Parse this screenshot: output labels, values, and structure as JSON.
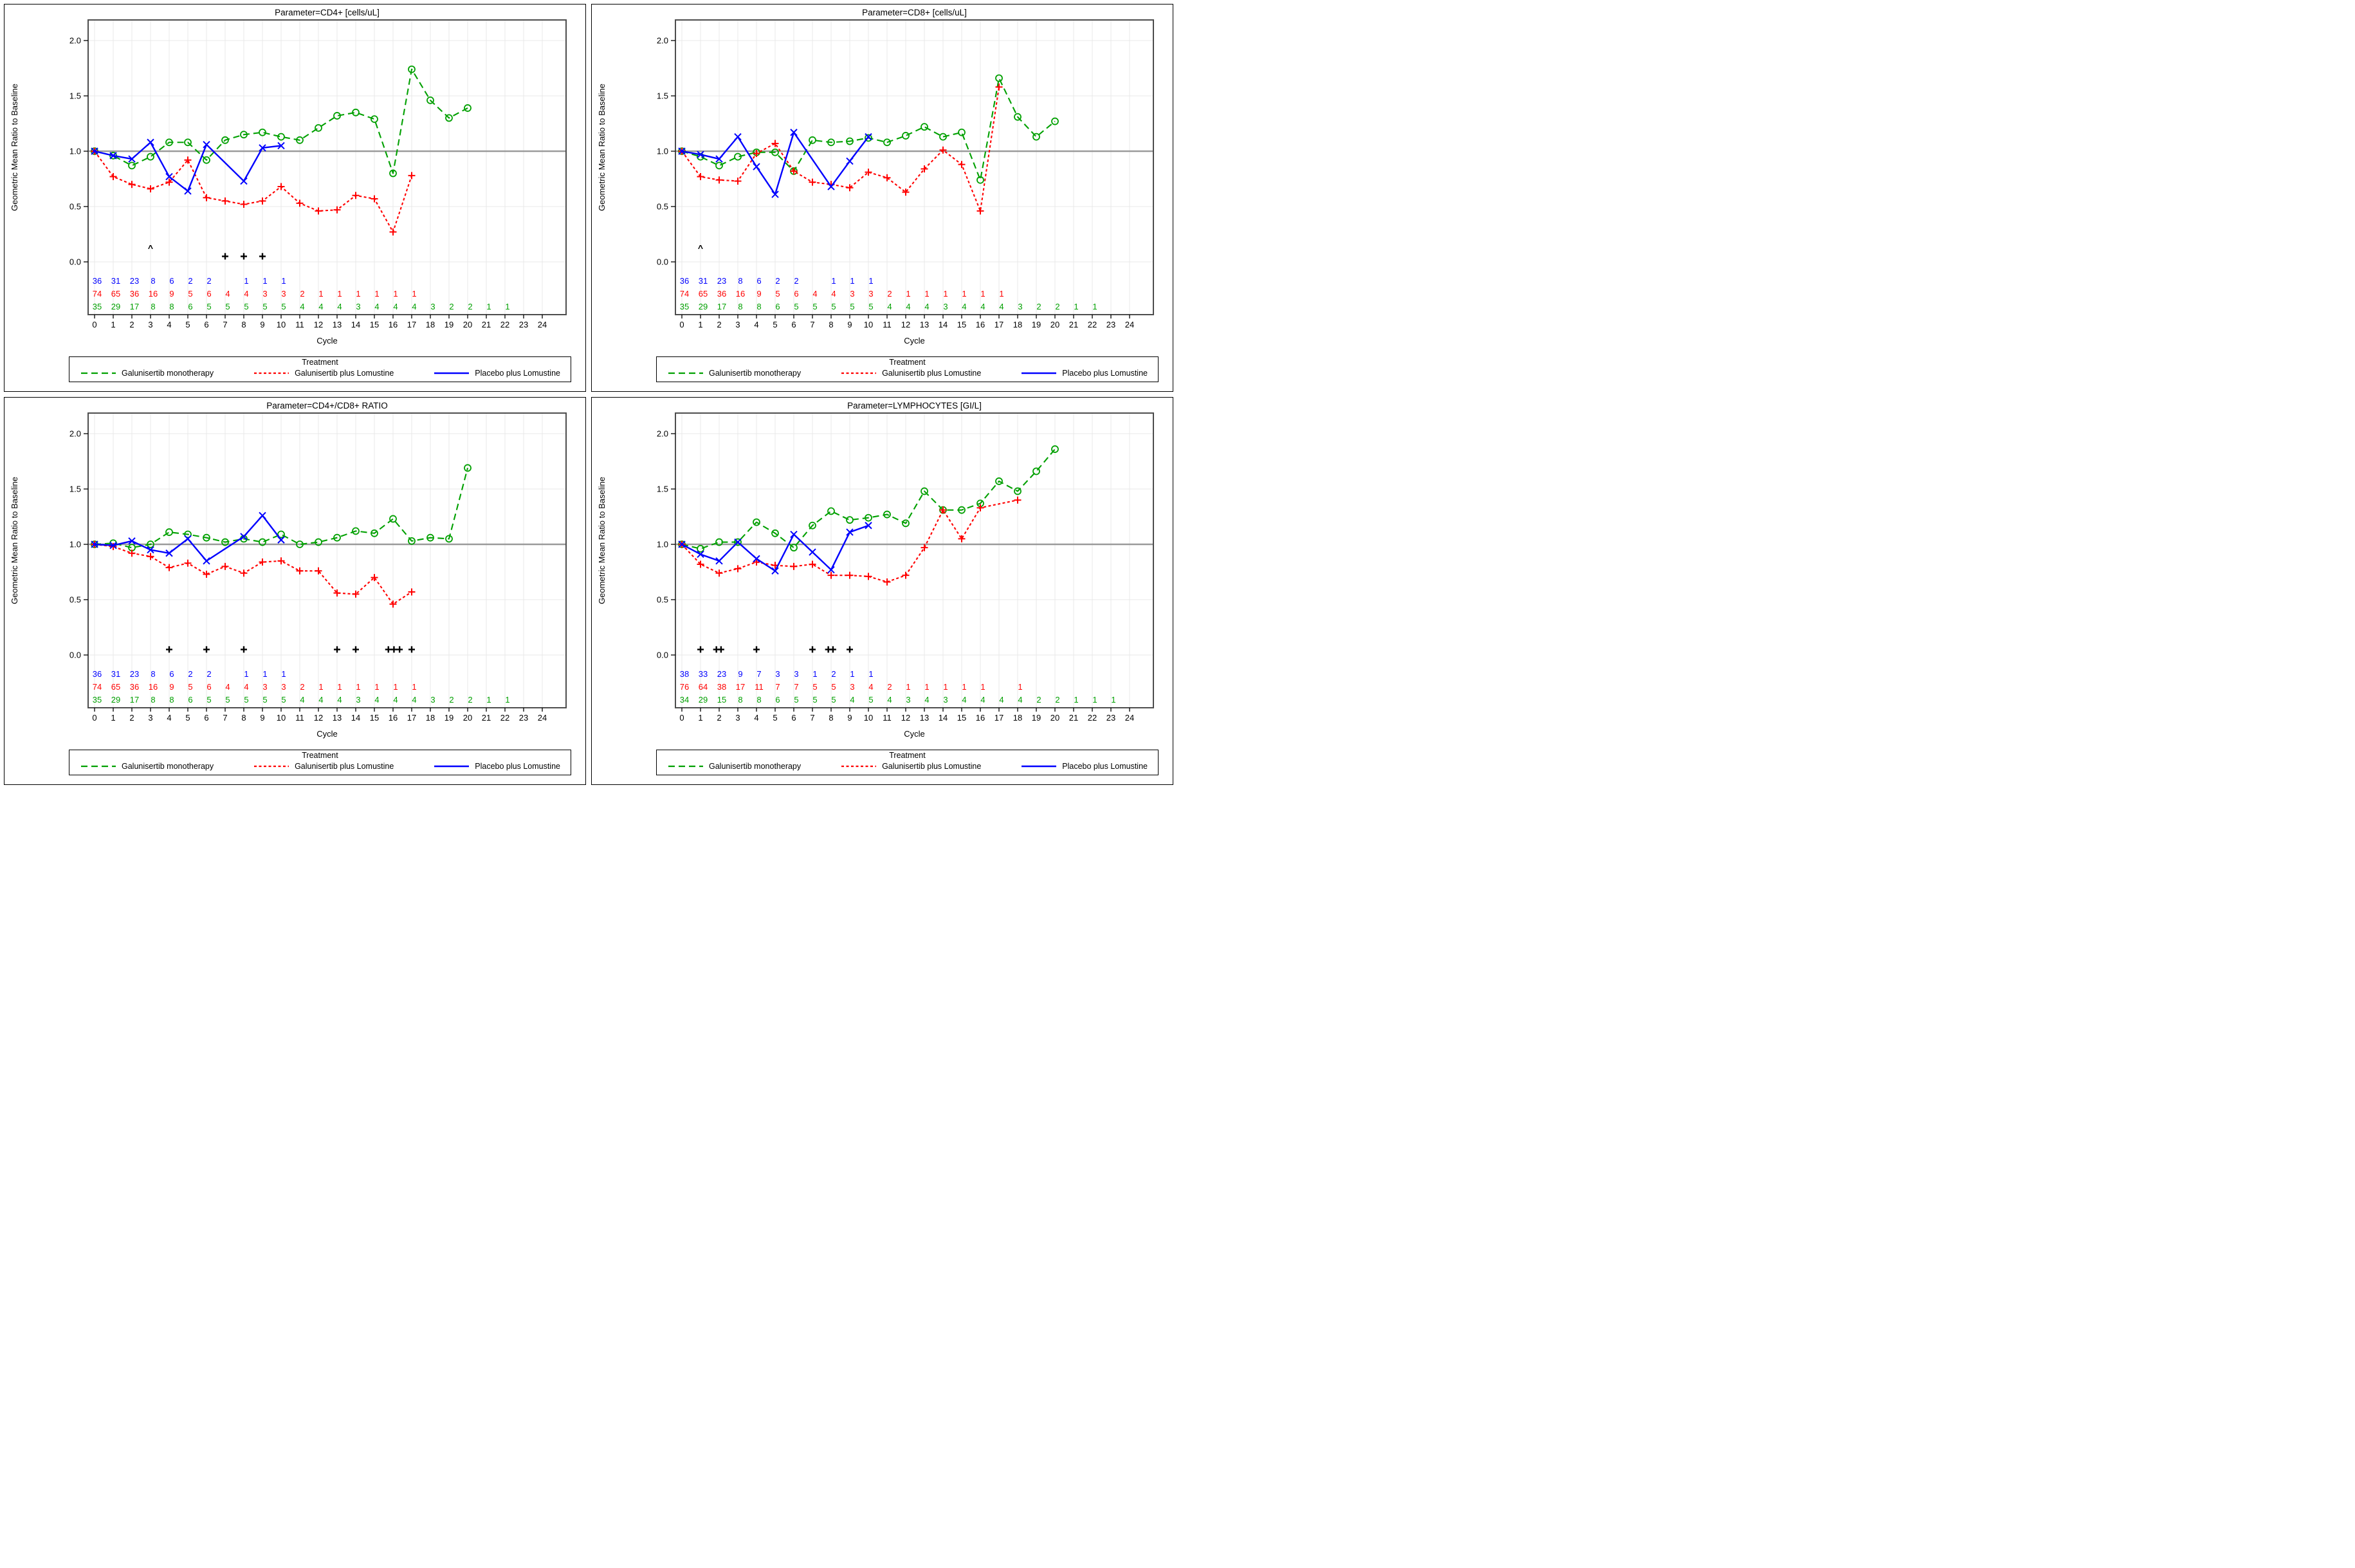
{
  "page": {
    "background": "#ffffff"
  },
  "chart_data": {
    "type": "line",
    "shared": {
      "ylabel": "Geometric Mean Ratio to Baseline",
      "xlabel": "Cycle",
      "ylim": [
        0.0,
        2.0
      ],
      "yticks": [
        "2.0",
        "1.5",
        "1.0",
        "0.5",
        "0.0"
      ],
      "xticks": [
        0,
        1,
        2,
        3,
        4,
        5,
        6,
        7,
        8,
        9,
        10,
        11,
        12,
        13,
        14,
        15,
        16,
        17,
        18,
        19,
        20,
        21,
        22,
        23,
        24
      ],
      "reference_line": 1.0,
      "grid": true,
      "legend_title": "Treatment",
      "legend_position": "bottom",
      "series_meta": [
        {
          "name": "Galunisertib monotherapy",
          "color": "#00A000",
          "dash": "long-dash",
          "marker": "circle"
        },
        {
          "name": "Galunisertib plus Lomustine",
          "color": "#FF0000",
          "dash": "short-dash",
          "marker": "plus"
        },
        {
          "name": "Placebo plus Lomustine",
          "color": "#0000FF",
          "dash": "solid",
          "marker": "x"
        }
      ]
    },
    "panels": [
      {
        "title": "Parameter=CD4+ [cells/uL]",
        "series_values": [
          [
            1.0,
            0.96,
            0.87,
            0.95,
            1.08,
            1.08,
            0.92,
            1.1,
            1.15,
            1.17,
            1.13,
            1.1,
            1.21,
            1.32,
            1.35,
            1.29,
            0.8,
            1.74,
            1.46,
            1.3,
            1.39
          ],
          [
            1.0,
            0.77,
            0.7,
            0.66,
            0.72,
            0.92,
            0.58,
            0.55,
            0.52,
            0.55,
            0.68,
            0.53,
            0.46,
            0.47,
            0.6,
            0.57,
            0.27,
            0.78
          ],
          [
            1.0,
            0.96,
            0.93,
            1.08,
            0.77,
            0.64,
            1.06,
            null,
            0.73,
            1.03,
            1.05
          ]
        ],
        "annotations": [
          {
            "symbol": "^",
            "cycle": 3,
            "value": 0.12
          },
          {
            "symbol": "+",
            "cycle": 7,
            "value": 0.05
          },
          {
            "symbol": "+",
            "cycle": 8,
            "value": 0.05
          },
          {
            "symbol": "+",
            "cycle": 9,
            "value": 0.05
          }
        ],
        "at_risk": [
          [
            "36",
            "31",
            "23",
            "8",
            "6",
            "2",
            "2",
            "",
            "1",
            "1",
            "1"
          ],
          [
            "74",
            "65",
            "36",
            "16",
            "9",
            "5",
            "6",
            "4",
            "4",
            "3",
            "3",
            "2",
            "1",
            "1",
            "1",
            "1",
            "1",
            "1"
          ],
          [
            "35",
            "29",
            "17",
            "8",
            "8",
            "6",
            "5",
            "5",
            "5",
            "5",
            "5",
            "4",
            "4",
            "4",
            "3",
            "4",
            "4",
            "4",
            "3",
            "2",
            "2",
            "1",
            "1"
          ]
        ]
      },
      {
        "title": "Parameter=CD8+ [cells/uL]",
        "series_values": [
          [
            1.0,
            0.95,
            0.87,
            0.95,
            0.99,
            0.99,
            0.82,
            1.1,
            1.08,
            1.09,
            1.12,
            1.08,
            1.14,
            1.22,
            1.13,
            1.17,
            0.74,
            1.66,
            1.31,
            1.13,
            1.27
          ],
          [
            1.0,
            0.77,
            0.74,
            0.73,
            0.98,
            1.07,
            0.82,
            0.72,
            0.7,
            0.67,
            0.81,
            0.76,
            0.63,
            0.84,
            1.01,
            0.88,
            0.46,
            1.58
          ],
          [
            1.0,
            0.97,
            0.93,
            1.13,
            0.86,
            0.61,
            1.17,
            null,
            0.68,
            0.91,
            1.13
          ]
        ],
        "annotations": [
          {
            "symbol": "^",
            "cycle": 1,
            "value": 0.12
          }
        ],
        "at_risk": [
          [
            "36",
            "31",
            "23",
            "8",
            "6",
            "2",
            "2",
            "",
            "1",
            "1",
            "1"
          ],
          [
            "74",
            "65",
            "36",
            "16",
            "9",
            "5",
            "6",
            "4",
            "4",
            "3",
            "3",
            "2",
            "1",
            "1",
            "1",
            "1",
            "1",
            "1"
          ],
          [
            "35",
            "29",
            "17",
            "8",
            "8",
            "6",
            "5",
            "5",
            "5",
            "5",
            "5",
            "4",
            "4",
            "4",
            "3",
            "4",
            "4",
            "4",
            "3",
            "2",
            "2",
            "1",
            "1"
          ]
        ]
      },
      {
        "title": "Parameter=CD4+/CD8+ RATIO",
        "series_values": [
          [
            1.0,
            1.01,
            0.97,
            1.0,
            1.11,
            1.09,
            1.06,
            1.02,
            1.05,
            1.02,
            1.09,
            1.0,
            1.02,
            1.06,
            1.12,
            1.1,
            1.23,
            1.03,
            1.06,
            1.05,
            1.69
          ],
          [
            1.0,
            0.98,
            0.92,
            0.89,
            0.79,
            0.83,
            0.73,
            0.8,
            0.74,
            0.84,
            0.85,
            0.76,
            0.76,
            0.56,
            0.55,
            0.7,
            0.46,
            0.57
          ],
          [
            1.0,
            0.99,
            1.03,
            0.95,
            0.92,
            1.05,
            0.85,
            null,
            1.07,
            1.26,
            1.04
          ]
        ],
        "annotations": [
          {
            "symbol": "+",
            "cycle": 4,
            "value": 0.05
          },
          {
            "symbol": "+",
            "cycle": 6,
            "value": 0.05
          },
          {
            "symbol": "+",
            "cycle": 8,
            "value": 0.05
          },
          {
            "symbol": "+",
            "cycle": 13,
            "value": 0.05
          },
          {
            "symbol": "+",
            "cycle": 14,
            "value": 0.05
          },
          {
            "symbol": "+",
            "cycle": 15.75,
            "value": 0.05
          },
          {
            "symbol": "+",
            "cycle": 16.05,
            "value": 0.05
          },
          {
            "symbol": "+",
            "cycle": 16.35,
            "value": 0.05
          },
          {
            "symbol": "+",
            "cycle": 17,
            "value": 0.05
          }
        ],
        "at_risk": [
          [
            "36",
            "31",
            "23",
            "8",
            "6",
            "2",
            "2",
            "",
            "1",
            "1",
            "1"
          ],
          [
            "74",
            "65",
            "36",
            "16",
            "9",
            "5",
            "6",
            "4",
            "4",
            "3",
            "3",
            "2",
            "1",
            "1",
            "1",
            "1",
            "1",
            "1"
          ],
          [
            "35",
            "29",
            "17",
            "8",
            "8",
            "6",
            "5",
            "5",
            "5",
            "5",
            "5",
            "4",
            "4",
            "4",
            "3",
            "4",
            "4",
            "4",
            "3",
            "2",
            "2",
            "1",
            "1"
          ]
        ]
      },
      {
        "title": "Parameter=LYMPHOCYTES [GI/L]",
        "series_values": [
          [
            1.0,
            0.96,
            1.02,
            1.02,
            1.2,
            1.1,
            0.97,
            1.17,
            1.3,
            1.22,
            1.24,
            1.27,
            1.19,
            1.48,
            1.31,
            1.31,
            1.37,
            1.57,
            1.48,
            1.66,
            1.86
          ],
          [
            1.0,
            0.82,
            0.74,
            0.78,
            0.84,
            0.81,
            0.8,
            0.82,
            0.72,
            0.72,
            0.71,
            0.66,
            0.72,
            0.97,
            1.31,
            1.05,
            1.33,
            null,
            1.4
          ],
          [
            1.0,
            0.91,
            0.85,
            1.02,
            0.87,
            0.76,
            1.09,
            0.93,
            0.77,
            1.11,
            1.17
          ]
        ],
        "annotations": [
          {
            "symbol": "+",
            "cycle": 1,
            "value": 0.05
          },
          {
            "symbol": "+",
            "cycle": 1.85,
            "value": 0.05
          },
          {
            "symbol": "+",
            "cycle": 2.1,
            "value": 0.05
          },
          {
            "symbol": "+",
            "cycle": 4,
            "value": 0.05
          },
          {
            "symbol": "+",
            "cycle": 7,
            "value": 0.05
          },
          {
            "symbol": "+",
            "cycle": 7.85,
            "value": 0.05
          },
          {
            "symbol": "+",
            "cycle": 8.1,
            "value": 0.05
          },
          {
            "symbol": "+",
            "cycle": 9,
            "value": 0.05
          }
        ],
        "at_risk": [
          [
            "38",
            "33",
            "23",
            "9",
            "7",
            "3",
            "3",
            "1",
            "2",
            "1",
            "1"
          ],
          [
            "76",
            "64",
            "38",
            "17",
            "11",
            "7",
            "7",
            "5",
            "5",
            "3",
            "4",
            "2",
            "1",
            "1",
            "1",
            "1",
            "1",
            "",
            "1"
          ],
          [
            "34",
            "29",
            "15",
            "8",
            "8",
            "6",
            "5",
            "5",
            "5",
            "4",
            "5",
            "4",
            "3",
            "4",
            "3",
            "4",
            "4",
            "4",
            "4",
            "2",
            "2",
            "1",
            "1",
            "1"
          ]
        ]
      }
    ]
  }
}
